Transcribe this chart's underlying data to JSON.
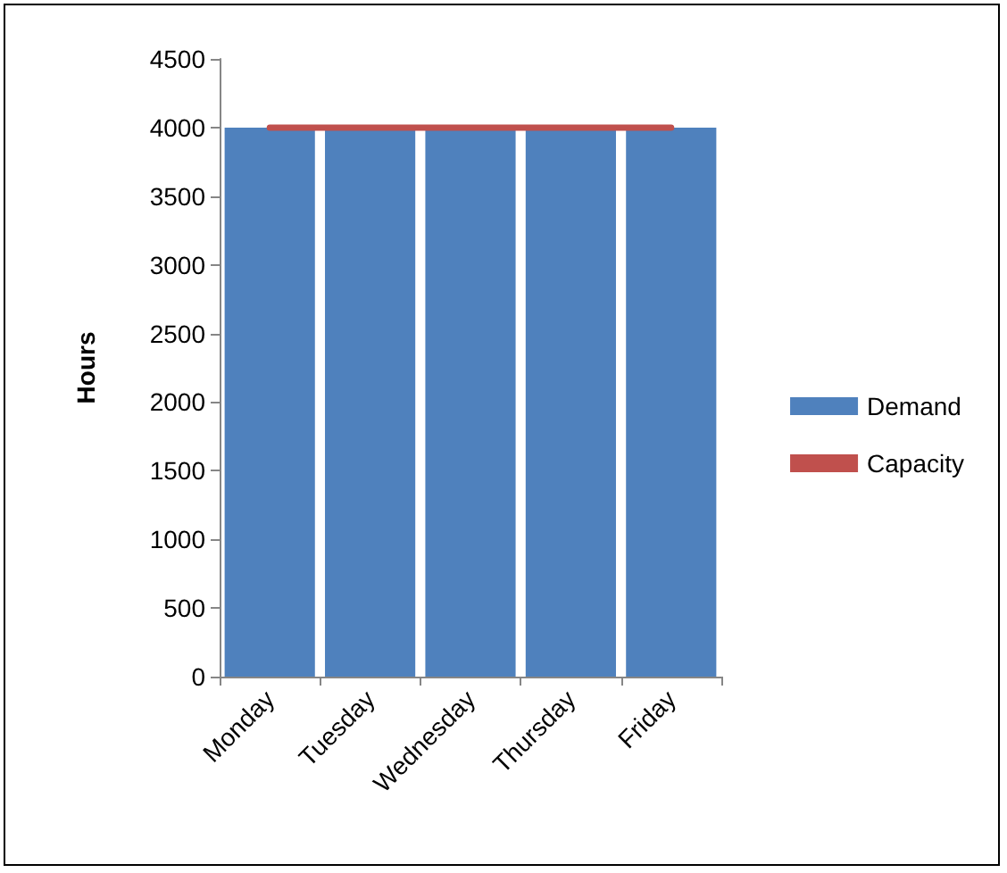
{
  "chart_data": {
    "type": "bar",
    "ylabel": "Hours",
    "categories": [
      "Monday",
      "Tuesday",
      "Wednesday",
      "Thursday",
      "Friday"
    ],
    "series": [
      {
        "name": "Demand",
        "color": "#4f81bd",
        "values": [
          4000,
          4000,
          4000,
          4000,
          4000
        ]
      },
      {
        "name": "Capacity",
        "type": "line",
        "color": "#c0504d",
        "values": [
          4000,
          4000,
          4000,
          4000,
          4000
        ]
      }
    ],
    "ylim": [
      0,
      4500
    ],
    "yticks": [
      0,
      500,
      1000,
      1500,
      2000,
      2500,
      3000,
      3500,
      4000,
      4500
    ],
    "grid": false,
    "legend": "right",
    "marker": "none"
  }
}
